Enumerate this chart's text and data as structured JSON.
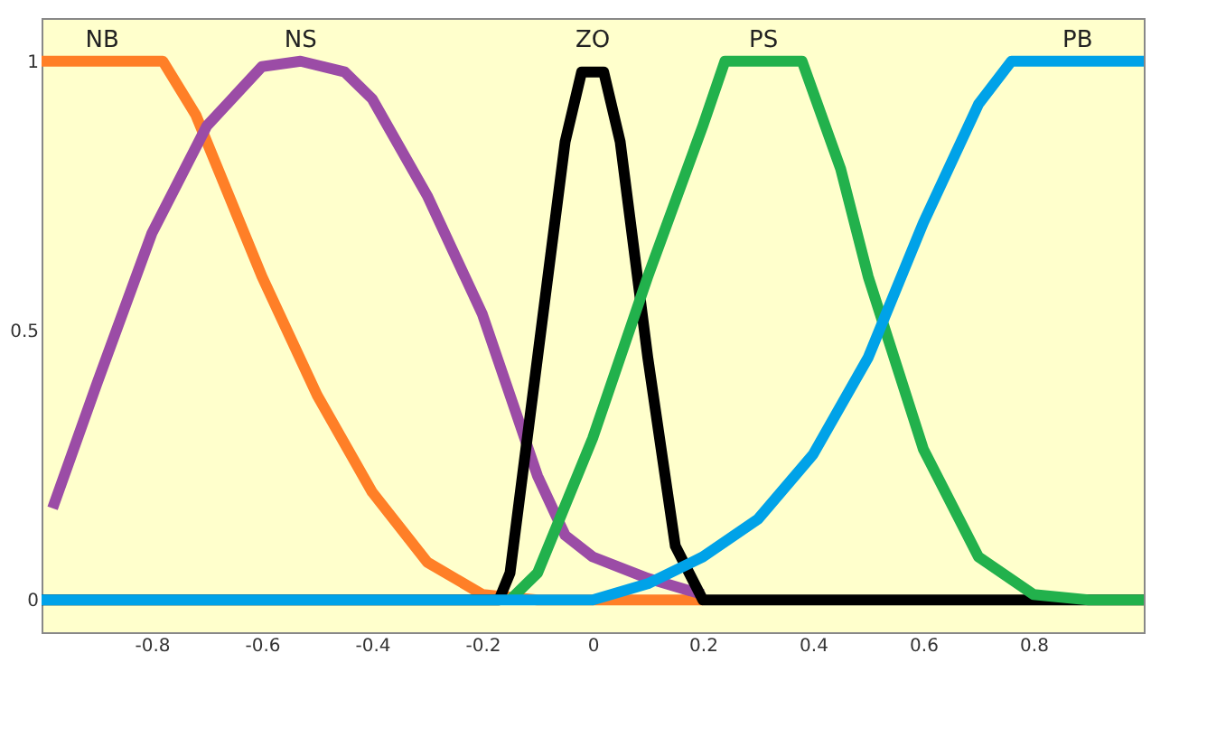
{
  "chart_data": {
    "type": "line",
    "xlim": [
      -1,
      1
    ],
    "ylim": [
      -0.06,
      1.08
    ],
    "xticks": [
      -0.8,
      -0.6,
      -0.4,
      -0.2,
      0,
      0.2,
      0.4,
      0.6,
      0.8
    ],
    "yticks": [
      0,
      0.5,
      1
    ],
    "grid": false,
    "marker": "none",
    "line_style": "solid",
    "series": [
      {
        "name": "NB",
        "color": "#ff7f27",
        "x": [
          -1,
          -0.78,
          -0.72,
          -0.66,
          -0.6,
          -0.5,
          -0.4,
          -0.3,
          -0.2,
          -0.1,
          0.2
        ],
        "values": [
          1,
          1,
          0.9,
          0.75,
          0.6,
          0.38,
          0.2,
          0.07,
          0.01,
          0,
          0
        ]
      },
      {
        "name": "NS",
        "color": "#9b4ca6",
        "x": [
          -0.98,
          -0.9,
          -0.8,
          -0.7,
          -0.6,
          -0.53,
          -0.45,
          -0.4,
          -0.3,
          -0.2,
          -0.1,
          -0.05,
          0,
          0.1,
          0.2
        ],
        "values": [
          0.17,
          0.4,
          0.68,
          0.88,
          0.99,
          1,
          0.98,
          0.93,
          0.75,
          0.53,
          0.23,
          0.12,
          0.08,
          0.04,
          0.01
        ]
      },
      {
        "name": "ZO",
        "color": "#000000",
        "x": [
          -1,
          -0.17,
          -0.15,
          -0.1,
          -0.05,
          -0.02,
          0.02,
          0.05,
          0.1,
          0.15,
          0.2,
          1
        ],
        "values": [
          0,
          0,
          0.05,
          0.45,
          0.85,
          0.98,
          0.98,
          0.85,
          0.45,
          0.1,
          0,
          0
        ]
      },
      {
        "name": "PS",
        "color": "#22b14c",
        "x": [
          -0.15,
          -0.1,
          0,
          0.1,
          0.2,
          0.24,
          0.38,
          0.45,
          0.5,
          0.6,
          0.7,
          0.8,
          0.9,
          1
        ],
        "values": [
          0,
          0.05,
          0.3,
          0.6,
          0.88,
          1,
          1,
          0.8,
          0.6,
          0.28,
          0.08,
          0.01,
          0,
          0
        ]
      },
      {
        "name": "PB",
        "color": "#00a2e8",
        "x": [
          -1,
          0,
          0.1,
          0.2,
          0.3,
          0.4,
          0.5,
          0.6,
          0.7,
          0.76,
          1
        ],
        "values": [
          0,
          0,
          0.03,
          0.08,
          0.15,
          0.27,
          0.45,
          0.7,
          0.92,
          1,
          1
        ]
      }
    ]
  }
}
